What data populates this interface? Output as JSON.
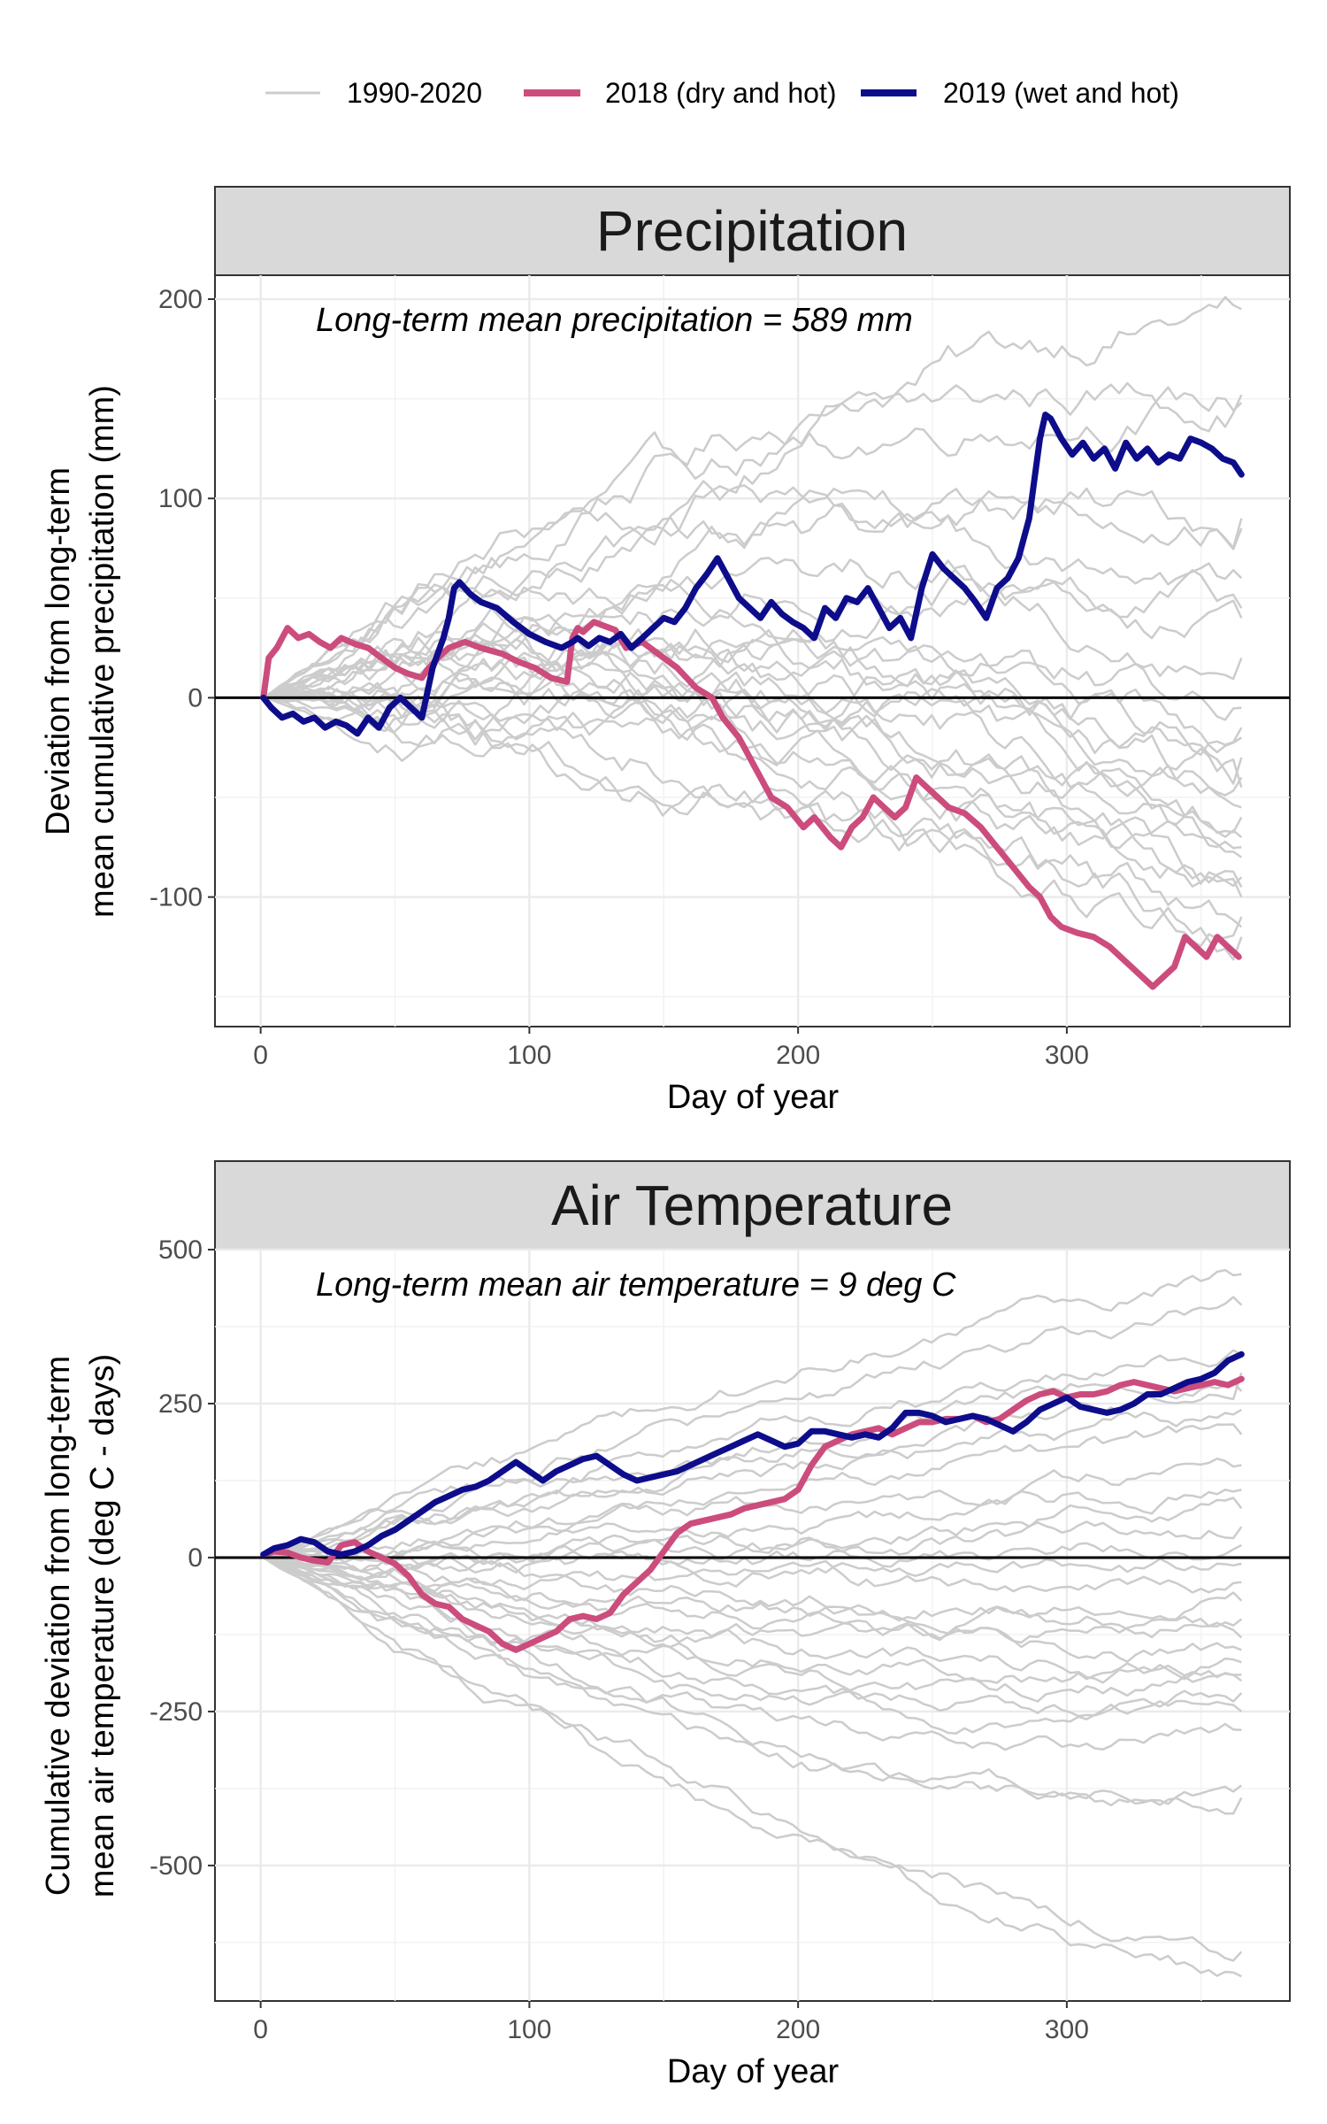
{
  "legend": {
    "items": [
      {
        "label": "1990-2020",
        "color": "#cccccc",
        "width": 2.5
      },
      {
        "label": "2018 (dry and hot)",
        "color": "#cc4c7d",
        "width": 8
      },
      {
        "label": "2019 (wet and hot)",
        "color": "#0d0d8c",
        "width": 8
      }
    ]
  },
  "chart_data": [
    {
      "type": "line",
      "title": "Precipitation",
      "annotation": "Long-term mean precipitation =  589  mm",
      "xlabel": "Day of year",
      "ylabel_lines": [
        "Deviation from long-term",
        "mean cumulative precipitation (mm)"
      ],
      "xlim": [
        -17,
        383
      ],
      "ylim": [
        -165,
        212
      ],
      "xticks": [
        0,
        100,
        200,
        300
      ],
      "yticks": [
        -100,
        0,
        100,
        200
      ],
      "yminor": [
        -150,
        -50,
        50,
        150
      ],
      "xminor": [
        50,
        150,
        250,
        350
      ],
      "hline": 0,
      "background_series": {
        "name": "1990-2020",
        "color": "#cccccc",
        "end_values": [
          195,
          152,
          148,
          90,
          85,
          60,
          45,
          40,
          20,
          -5,
          -15,
          -20,
          -30,
          -40,
          -45,
          -55,
          -60,
          -70,
          -75,
          -80,
          -90,
          -95,
          -100,
          -110,
          -115,
          -120
        ],
        "peak_values": [
          158,
          150,
          140,
          120,
          110,
          100,
          85,
          75,
          70,
          60,
          55,
          50,
          40,
          35,
          30,
          25,
          20,
          15,
          10,
          5,
          0,
          -10,
          -20,
          -35,
          -45,
          -60
        ],
        "low_values": [
          -150,
          -120,
          -100,
          -95,
          -90,
          -80,
          -75,
          -70,
          -65,
          -60,
          -55,
          -50,
          -45,
          -40,
          -35,
          -30,
          -25,
          -20,
          -15,
          -10,
          -5,
          0,
          5,
          10,
          15,
          20
        ]
      },
      "series": [
        {
          "name": "2018 (dry and hot)",
          "color": "#cc4c7d",
          "x": [
            1,
            3,
            6,
            10,
            14,
            18,
            22,
            26,
            30,
            35,
            40,
            45,
            50,
            55,
            60,
            62,
            66,
            70,
            76,
            82,
            90,
            96,
            102,
            108,
            114,
            116,
            118,
            120,
            124,
            128,
            132,
            136,
            142,
            148,
            155,
            162,
            168,
            172,
            178,
            184,
            190,
            196,
            202,
            206,
            212,
            216,
            220,
            224,
            228,
            232,
            236,
            240,
            244,
            248,
            252,
            256,
            262,
            268,
            274,
            280,
            286,
            290,
            294,
            298,
            304,
            310,
            316,
            320,
            324,
            328,
            332,
            336,
            340,
            344,
            348,
            352,
            356,
            360,
            364
          ],
          "y": [
            0,
            20,
            25,
            35,
            30,
            32,
            28,
            25,
            30,
            27,
            25,
            20,
            15,
            12,
            10,
            14,
            20,
            25,
            28,
            25,
            22,
            18,
            15,
            10,
            8,
            30,
            35,
            33,
            38,
            36,
            34,
            25,
            28,
            22,
            15,
            5,
            0,
            -10,
            -20,
            -35,
            -50,
            -55,
            -65,
            -60,
            -70,
            -75,
            -65,
            -60,
            -50,
            -55,
            -60,
            -55,
            -40,
            -45,
            -50,
            -55,
            -58,
            -65,
            -75,
            -85,
            -95,
            -100,
            -110,
            -115,
            -118,
            -120,
            -125,
            -130,
            -135,
            -140,
            -145,
            -140,
            -135,
            -120,
            -125,
            -130,
            -120,
            -125,
            -130
          ]
        },
        {
          "name": "2019 (wet and hot)",
          "color": "#0d0d8c",
          "x": [
            1,
            4,
            8,
            12,
            16,
            20,
            24,
            28,
            32,
            36,
            40,
            44,
            48,
            52,
            56,
            60,
            64,
            68,
            70,
            72,
            74,
            78,
            82,
            88,
            94,
            100,
            106,
            112,
            116,
            118,
            122,
            126,
            130,
            134,
            138,
            142,
            146,
            150,
            154,
            158,
            162,
            166,
            170,
            174,
            178,
            182,
            186,
            190,
            194,
            198,
            202,
            206,
            210,
            214,
            218,
            222,
            226,
            230,
            234,
            238,
            242,
            246,
            250,
            254,
            258,
            262,
            266,
            270,
            274,
            278,
            282,
            286,
            288,
            290,
            292,
            294,
            298,
            302,
            306,
            310,
            314,
            318,
            322,
            326,
            330,
            334,
            338,
            342,
            346,
            350,
            354,
            358,
            362,
            365
          ],
          "y": [
            0,
            -5,
            -10,
            -8,
            -12,
            -10,
            -15,
            -12,
            -14,
            -18,
            -10,
            -15,
            -5,
            0,
            -5,
            -10,
            15,
            30,
            40,
            55,
            58,
            52,
            48,
            45,
            38,
            32,
            28,
            25,
            28,
            30,
            26,
            30,
            28,
            32,
            25,
            30,
            35,
            40,
            38,
            45,
            55,
            62,
            70,
            60,
            50,
            45,
            40,
            48,
            42,
            38,
            35,
            30,
            45,
            40,
            50,
            48,
            55,
            45,
            35,
            40,
            30,
            55,
            72,
            65,
            60,
            55,
            48,
            40,
            55,
            60,
            70,
            90,
            110,
            130,
            142,
            140,
            130,
            122,
            128,
            120,
            125,
            115,
            128,
            120,
            125,
            118,
            122,
            120,
            130,
            128,
            125,
            120,
            118,
            112
          ]
        }
      ]
    },
    {
      "type": "line",
      "title": "Air Temperature",
      "annotation": "Long-term mean air temperature =  9  deg C",
      "xlabel": "Day of year",
      "ylabel_lines": [
        "Cumulative deviation from long-term",
        "mean air temperature (deg C - days)"
      ],
      "xlim": [
        -17,
        383
      ],
      "ylim": [
        -720,
        500
      ],
      "xticks": [
        0,
        100,
        200,
        300
      ],
      "yticks": [
        -500,
        -250,
        0,
        250,
        500
      ],
      "yminor": [
        -625,
        -375,
        -125,
        125,
        375
      ],
      "xminor": [
        50,
        150,
        250,
        350
      ],
      "hline": 0,
      "background_series": {
        "name": "1990-2020",
        "color": "#cccccc",
        "end_values": [
          460,
          410,
          330,
          300,
          270,
          240,
          200,
          150,
          110,
          80,
          50,
          20,
          -10,
          -40,
          -70,
          -100,
          -130,
          -150,
          -170,
          -190,
          -200,
          -220,
          -250,
          -280,
          -370,
          -390,
          -640,
          -680
        ],
        "mid_values": [
          300,
          260,
          230,
          200,
          170,
          140,
          110,
          80,
          50,
          20,
          0,
          -20,
          -40,
          -60,
          -80,
          -100,
          -120,
          -150,
          -180,
          -200,
          -230,
          -260,
          -300,
          -330,
          -360,
          -400,
          -450,
          -500
        ]
      },
      "series": [
        {
          "name": "2018 (dry and hot)",
          "color": "#cc4c7d",
          "x": [
            1,
            5,
            10,
            15,
            20,
            25,
            30,
            35,
            40,
            45,
            50,
            55,
            60,
            65,
            70,
            75,
            80,
            85,
            90,
            95,
            100,
            105,
            110,
            115,
            120,
            125,
            130,
            135,
            140,
            145,
            150,
            155,
            160,
            165,
            170,
            175,
            180,
            185,
            190,
            195,
            200,
            205,
            210,
            215,
            220,
            225,
            230,
            235,
            240,
            245,
            250,
            255,
            260,
            265,
            270,
            275,
            280,
            285,
            290,
            295,
            300,
            305,
            310,
            315,
            320,
            325,
            330,
            335,
            340,
            345,
            350,
            355,
            360,
            365
          ],
          "y": [
            5,
            10,
            8,
            0,
            -5,
            -8,
            20,
            25,
            10,
            0,
            -10,
            -30,
            -60,
            -75,
            -80,
            -100,
            -110,
            -120,
            -140,
            -150,
            -140,
            -130,
            -120,
            -100,
            -95,
            -100,
            -90,
            -60,
            -40,
            -20,
            10,
            40,
            55,
            60,
            65,
            70,
            80,
            85,
            90,
            95,
            110,
            150,
            180,
            190,
            200,
            205,
            210,
            200,
            210,
            220,
            220,
            225,
            225,
            230,
            220,
            225,
            240,
            255,
            265,
            270,
            260,
            265,
            265,
            270,
            280,
            285,
            280,
            275,
            270,
            275,
            280,
            285,
            280,
            290
          ]
        },
        {
          "name": "2019 (wet and hot)",
          "color": "#0d0d8c",
          "x": [
            1,
            5,
            10,
            15,
            20,
            25,
            30,
            35,
            40,
            45,
            50,
            55,
            60,
            65,
            70,
            75,
            80,
            85,
            90,
            95,
            100,
            105,
            110,
            115,
            120,
            125,
            130,
            135,
            140,
            145,
            150,
            155,
            160,
            165,
            170,
            175,
            180,
            185,
            190,
            195,
            200,
            205,
            210,
            215,
            220,
            225,
            230,
            235,
            240,
            245,
            250,
            255,
            260,
            265,
            270,
            275,
            280,
            285,
            290,
            295,
            300,
            305,
            310,
            315,
            320,
            325,
            330,
            335,
            340,
            345,
            350,
            355,
            360,
            365
          ],
          "y": [
            5,
            15,
            20,
            30,
            25,
            10,
            5,
            10,
            20,
            35,
            45,
            60,
            75,
            90,
            100,
            110,
            115,
            125,
            140,
            155,
            140,
            125,
            140,
            150,
            160,
            165,
            150,
            135,
            125,
            130,
            135,
            140,
            150,
            160,
            170,
            180,
            190,
            200,
            190,
            180,
            185,
            205,
            205,
            200,
            195,
            200,
            195,
            210,
            235,
            235,
            230,
            220,
            225,
            230,
            225,
            215,
            205,
            220,
            240,
            250,
            260,
            245,
            240,
            235,
            240,
            250,
            265,
            265,
            275,
            285,
            290,
            300,
            320,
            330
          ]
        }
      ]
    }
  ]
}
